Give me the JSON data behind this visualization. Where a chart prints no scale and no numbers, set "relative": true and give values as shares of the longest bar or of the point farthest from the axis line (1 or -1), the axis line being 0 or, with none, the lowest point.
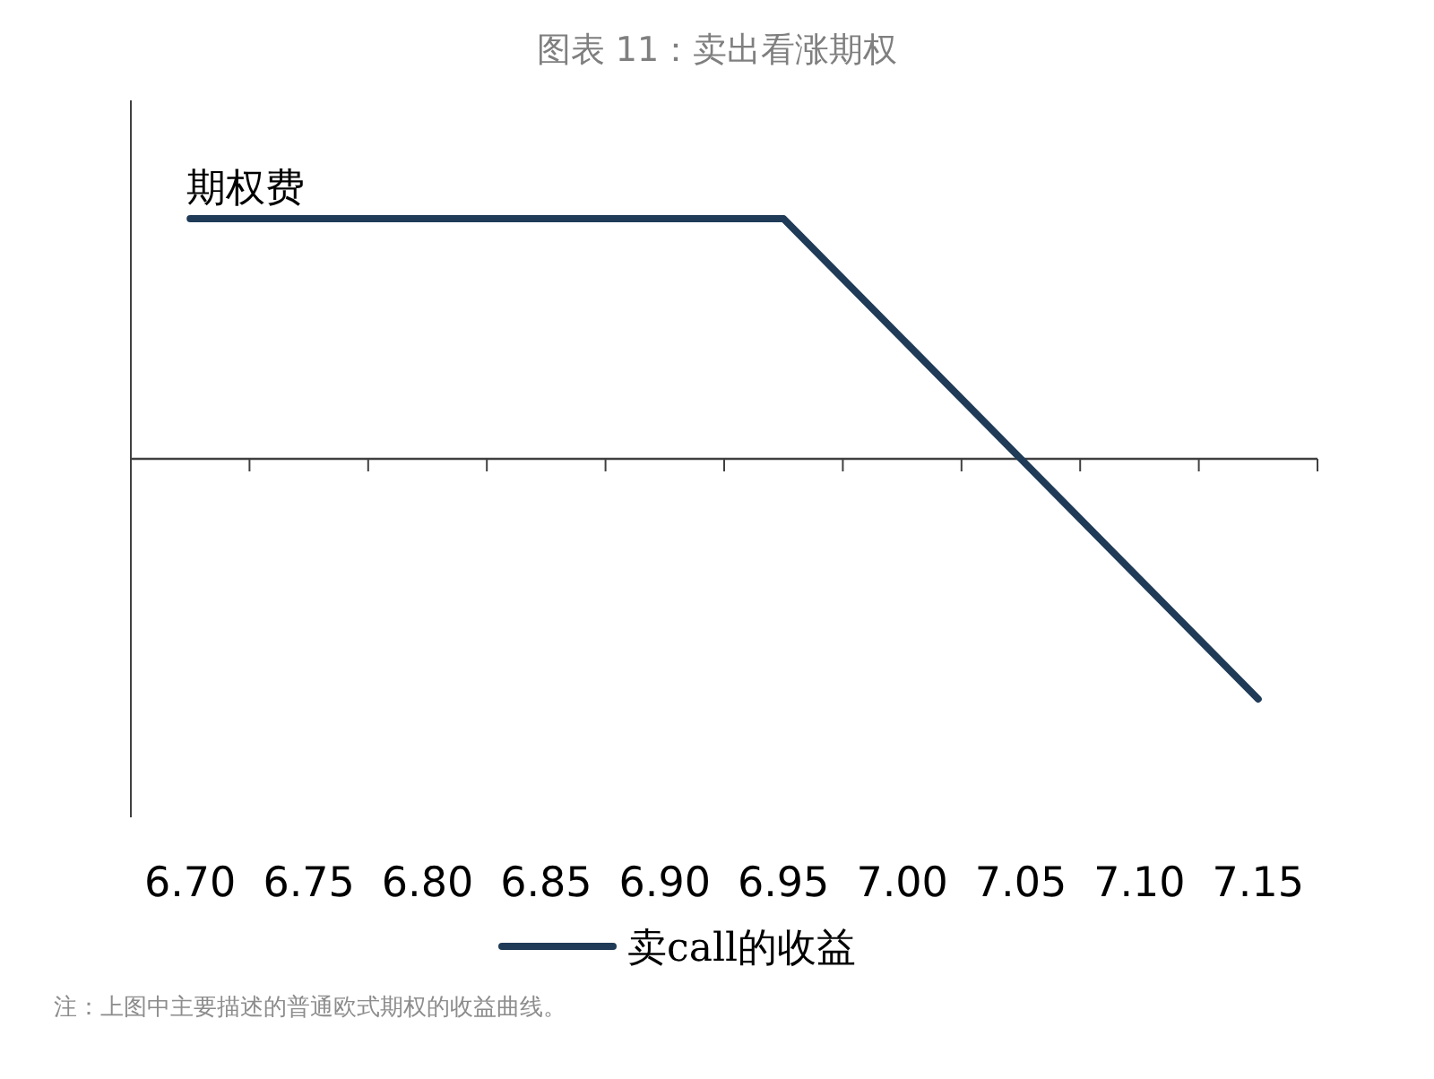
{
  "chart_data": {
    "type": "line",
    "title": "图表 11：卖出看涨期权",
    "relative": true,
    "categories": [
      "6.70",
      "6.75",
      "6.80",
      "6.85",
      "6.90",
      "6.95",
      "7.00",
      "7.05",
      "7.10",
      "7.15"
    ],
    "series": [
      {
        "name": "卖call的收益",
        "color": "#1f3b57",
        "values": [
          1,
          1,
          1,
          1,
          1,
          1,
          0.5,
          0,
          -0.5,
          -1
        ]
      }
    ],
    "annotations": [
      {
        "text": "期权费",
        "x": "6.70",
        "y": 1
      },
      "注：上图中主要描述的普通欧式期权的收益曲线。"
    ],
    "legend": "bottom",
    "marker": "none",
    "line_style": "solid"
  }
}
